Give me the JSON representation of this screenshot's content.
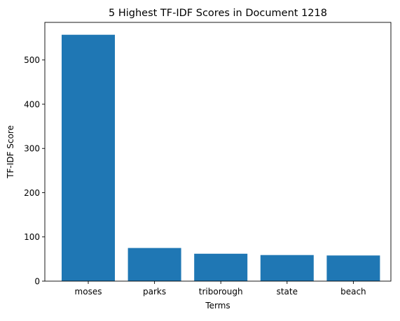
{
  "chart_data": {
    "type": "bar",
    "title": "5 Highest TF-IDF Scores in Document 1218",
    "xlabel": "Terms",
    "ylabel": "TF-IDF Score",
    "categories": [
      "moses",
      "parks",
      "triborough",
      "state",
      "beach"
    ],
    "values": [
      557,
      75,
      62,
      59,
      58
    ],
    "ylim": [
      0,
      585
    ],
    "yticks": [
      0,
      100,
      200,
      300,
      400,
      500
    ],
    "grid": false,
    "legend": "none",
    "bar_color": "#1f77b4"
  }
}
